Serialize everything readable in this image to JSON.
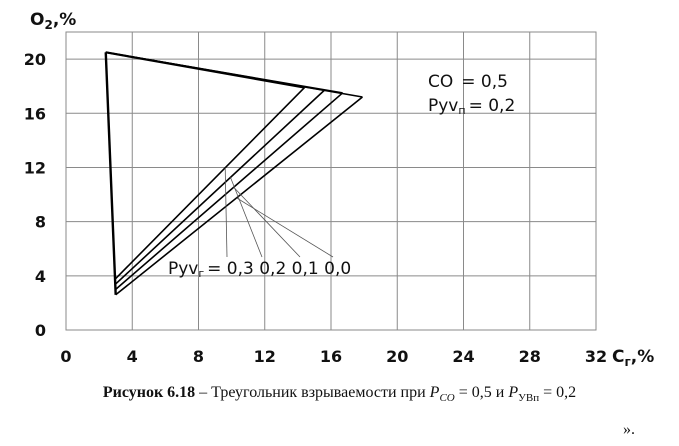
{
  "chart_data": {
    "type": "line",
    "ylabel": "O",
    "ylabel_sub": "2",
    "ylabel_unit": ",%",
    "xlabel": "C",
    "xlabel_sub": "г",
    "xlabel_unit": ",%",
    "xlim": [
      0,
      32
    ],
    "ylim": [
      0,
      22
    ],
    "xticks": [
      "0",
      "4",
      "8",
      "12",
      "16",
      "20",
      "24",
      "28",
      "32"
    ],
    "xtick_values": [
      0,
      4,
      8,
      12,
      16,
      20,
      24,
      28,
      32
    ],
    "yticks": [
      "0",
      "4",
      "8",
      "12",
      "16",
      "20"
    ],
    "ytick_values": [
      0,
      4,
      8,
      12,
      16,
      20
    ],
    "grid": true,
    "apex": {
      "x": 2.4,
      "y": 20.5
    },
    "series": [
      {
        "label": "0,3",
        "upper": {
          "x": 14.4,
          "y": 17.9
        },
        "lower": {
          "x": 3.0,
          "y": 3.8
        }
      },
      {
        "label": "0,2",
        "upper": {
          "x": 15.6,
          "y": 17.7
        },
        "lower": {
          "x": 3.0,
          "y": 3.4
        }
      },
      {
        "label": "0,1",
        "upper": {
          "x": 16.7,
          "y": 17.5
        },
        "lower": {
          "x": 3.0,
          "y": 3.0
        }
      },
      {
        "label": "0,0",
        "upper": {
          "x": 17.9,
          "y": 17.2
        },
        "lower": {
          "x": 3.0,
          "y": 2.6
        }
      }
    ],
    "annotations": {
      "co_prefix": "CO",
      "co_value": "= 0,5",
      "pyvp_main": "Pуᴠ",
      "pyvp_sub": "п",
      "pyvp_value": "= 0,2",
      "pyvg_main": "Pуᴠ",
      "pyvg_sub": "г",
      "pyvg_value": "= 0,3  0,2  0,1  0,0"
    }
  },
  "caption": {
    "figure": "Рисунок 6.18",
    "dash_text": " – Треугольник взрываемости при ",
    "p": "P",
    "co_sub": "CO",
    "eq1": " = 0,5",
    "and": " и ",
    "pyvp_sub": "УВп",
    "eq2": " = 0,2",
    "ending": "»."
  }
}
